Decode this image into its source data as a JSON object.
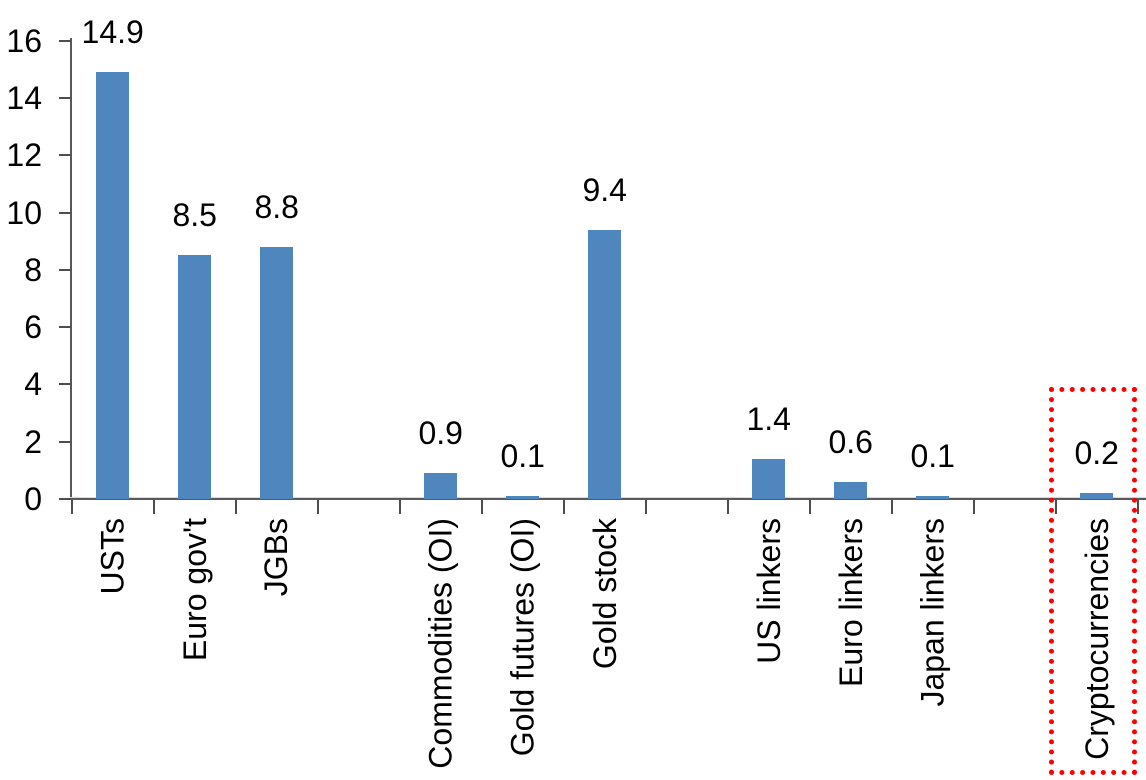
{
  "chart_data": {
    "type": "bar",
    "title": "",
    "xlabel": "",
    "ylabel": "",
    "ylim": [
      0,
      16
    ],
    "yticks": [
      0,
      2,
      4,
      6,
      8,
      10,
      12,
      14,
      16
    ],
    "grid": false,
    "legend": false,
    "bar_color": "#4E86BD",
    "axis_color": "#595959",
    "text_color": "#000000",
    "highlight_box_color": "#FF0000",
    "categories": [
      "USTs",
      "Euro gov't",
      "JGBs",
      "",
      "Commodities (OI)",
      "Gold futures (OI)",
      "Gold stock",
      "",
      "US linkers",
      "Euro linkers",
      "Japan linkers",
      "",
      "Cryptocurrencies"
    ],
    "values": [
      14.9,
      8.5,
      8.8,
      null,
      0.9,
      0.1,
      9.4,
      null,
      1.4,
      0.6,
      0.1,
      null,
      0.2
    ],
    "data_labels": [
      "14.9",
      "8.5",
      "8.8",
      "",
      "0.9",
      "0.1",
      "9.4",
      "",
      "1.4",
      "0.6",
      "0.1",
      "",
      "0.2"
    ],
    "highlighted_category": "Cryptocurrencies"
  }
}
